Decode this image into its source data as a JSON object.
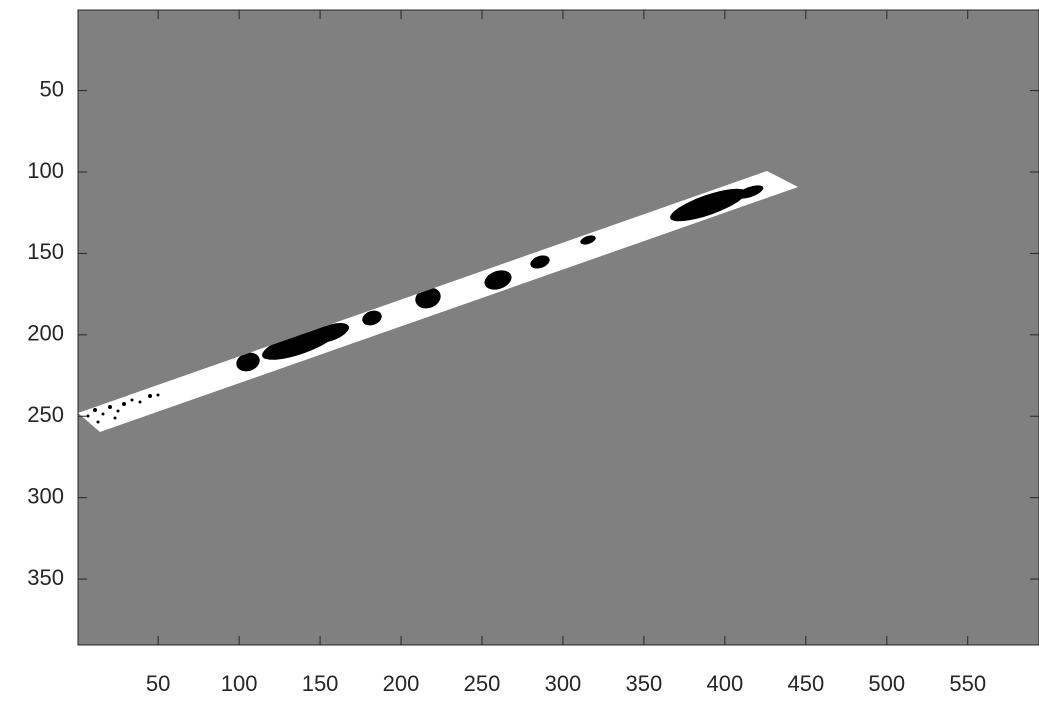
{
  "chart_data": {
    "type": "image",
    "color": "#808080",
    "xlim": [
      0.5,
      594
    ],
    "ylim": [
      0.5,
      390.5
    ],
    "y_reversed": true,
    "xticks": [
      50,
      100,
      150,
      200,
      250,
      300,
      350,
      400,
      450,
      500,
      550
    ],
    "yticks": [
      50,
      100,
      150,
      200,
      250,
      300,
      350
    ]
  }
}
